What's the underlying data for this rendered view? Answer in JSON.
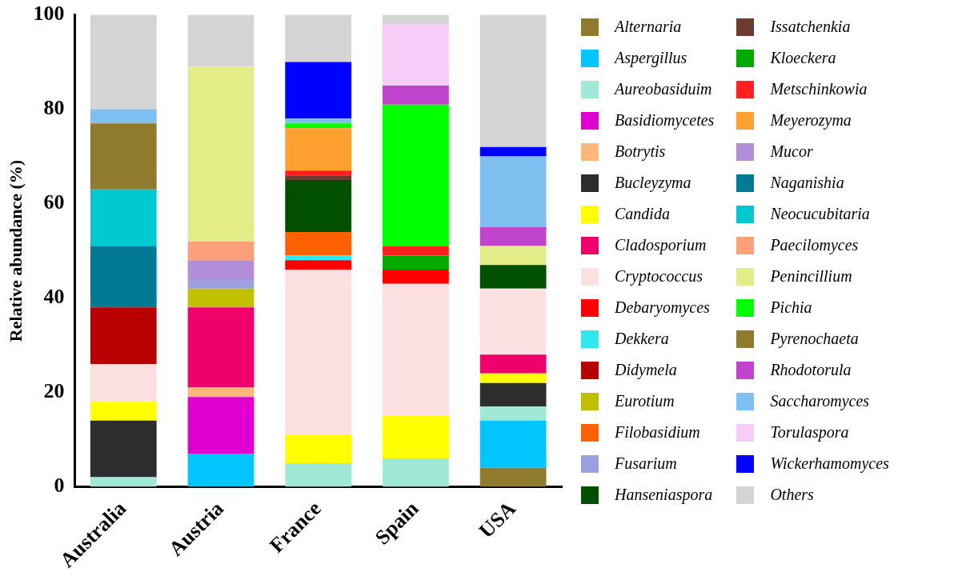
{
  "chart_data": {
    "type": "bar",
    "stacked": true,
    "ylabel": "Relative abundance (%)",
    "categories": [
      "Australia",
      "Austria",
      "France",
      "Spain",
      "USA"
    ],
    "ylim": [
      0,
      100
    ],
    "yticks": [
      0,
      20,
      40,
      60,
      80,
      100
    ],
    "grid": false,
    "legend": "right",
    "series": [
      {
        "name": "Alternaria",
        "color": "#8f7a2e",
        "values": [
          0,
          0,
          0,
          0,
          4
        ]
      },
      {
        "name": "Aspergillus",
        "color": "#00c5ff",
        "values": [
          0,
          7,
          0,
          0,
          10
        ]
      },
      {
        "name": "Aureobasiduim",
        "color": "#a0e9d6",
        "values": [
          2,
          0,
          5,
          6,
          3
        ]
      },
      {
        "name": "Basidiomycetes",
        "color": "#e000d0",
        "values": [
          0,
          12,
          0,
          0,
          0
        ]
      },
      {
        "name": "Botrytis",
        "color": "#ffb87a",
        "values": [
          0,
          2,
          0,
          0,
          0
        ]
      },
      {
        "name": "Bucleyzyma",
        "color": "#2d2d2d",
        "values": [
          12,
          0,
          0,
          0,
          5
        ]
      },
      {
        "name": "Candida",
        "color": "#ffff00",
        "values": [
          4,
          0,
          6,
          9,
          2
        ]
      },
      {
        "name": "Cladosporium",
        "color": "#f0006a",
        "values": [
          0,
          17,
          0,
          0,
          4
        ]
      },
      {
        "name": "Cryptococcus",
        "color": "#fde0e0",
        "values": [
          8,
          0,
          35,
          28,
          14
        ]
      },
      {
        "name": "Debaryomyces",
        "color": "#ff0000",
        "values": [
          0,
          0,
          2,
          3,
          0
        ]
      },
      {
        "name": "Dekkera",
        "color": "#30e8f0",
        "values": [
          0,
          0,
          1,
          0,
          0
        ]
      },
      {
        "name": "Didymela",
        "color": "#b90000",
        "values": [
          12,
          0,
          0,
          0,
          0
        ]
      },
      {
        "name": "Eurotium",
        "color": "#c0c000",
        "values": [
          0,
          4,
          0,
          0,
          0
        ]
      },
      {
        "name": "Filobasidium",
        "color": "#ff6000",
        "values": [
          0,
          0,
          5,
          0,
          0
        ]
      },
      {
        "name": "Fusarium",
        "color": "#9aa0e0",
        "values": [
          0,
          2,
          0,
          0,
          0
        ]
      },
      {
        "name": "Hanseniaspora",
        "color": "#005000",
        "values": [
          0,
          0,
          11,
          0,
          5
        ]
      },
      {
        "name": "Issatchenkia",
        "color": "#6b3a30",
        "values": [
          0,
          0,
          1,
          0,
          0
        ]
      },
      {
        "name": "Kloeckera",
        "color": "#00aa00",
        "values": [
          0,
          0,
          0,
          3,
          0
        ]
      },
      {
        "name": "Metschinkowia",
        "color": "#ff2020",
        "values": [
          0,
          0,
          1,
          2,
          0
        ]
      },
      {
        "name": "Meyerozyma",
        "color": "#ffa030",
        "values": [
          0,
          0,
          9,
          0,
          0
        ]
      },
      {
        "name": "Mucor",
        "color": "#b08ed8",
        "values": [
          0,
          4,
          0,
          0,
          0
        ]
      },
      {
        "name": "Naganishia",
        "color": "#007a94",
        "values": [
          13,
          0,
          0,
          0,
          0
        ]
      },
      {
        "name": "Neocucubitaria",
        "color": "#00c8d0",
        "values": [
          12,
          0,
          0,
          0,
          0
        ]
      },
      {
        "name": "Paecilomyces",
        "color": "#ffa07a",
        "values": [
          0,
          4,
          0,
          0,
          0
        ]
      },
      {
        "name": "Penincillium",
        "color": "#e2ed88",
        "values": [
          0,
          37,
          0,
          0,
          4
        ]
      },
      {
        "name": "Pichia",
        "color": "#00ff00",
        "values": [
          0,
          0,
          1,
          30,
          0
        ]
      },
      {
        "name": "Pyrenochaeta",
        "color": "#8f7a2e",
        "values": [
          14,
          0,
          0,
          0,
          0
        ]
      },
      {
        "name": "Rhodotorula",
        "color": "#c044cc",
        "values": [
          0,
          0,
          0,
          4,
          4
        ]
      },
      {
        "name": "Saccharomyces",
        "color": "#80c0f0",
        "values": [
          3,
          0,
          1,
          0,
          15
        ]
      },
      {
        "name": "Torulaspora",
        "color": "#f8ccf8",
        "values": [
          0,
          0,
          0,
          13,
          0
        ]
      },
      {
        "name": "Wickerhamomyces",
        "color": "#0000ff",
        "values": [
          0,
          0,
          12,
          0,
          2
        ]
      },
      {
        "name": "Others",
        "color": "#d4d4d4",
        "values": [
          20,
          11,
          10,
          2,
          28
        ]
      }
    ]
  }
}
